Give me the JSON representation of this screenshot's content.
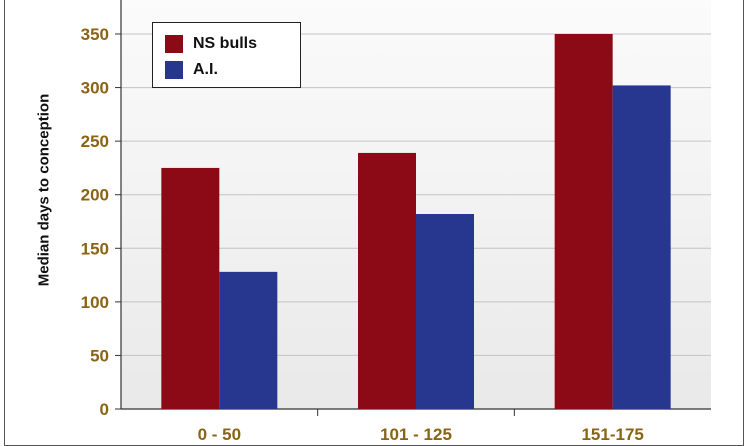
{
  "chart_data": {
    "type": "bar",
    "categories": [
      "0 - 50",
      "101 - 125",
      "151-175"
    ],
    "series": [
      {
        "name": "NS bulls",
        "values": [
          225,
          239,
          350
        ],
        "color": "#8b0a16"
      },
      {
        "name": "A.I.",
        "values": [
          128,
          182,
          302
        ],
        "color": "#27378f"
      }
    ],
    "ylabel": "Median days to conception",
    "xlabel": "",
    "ylim": [
      0,
      370
    ],
    "yticks": [
      0,
      50,
      100,
      150,
      200,
      250,
      300,
      350
    ],
    "grid": true,
    "legend_position": "top-left",
    "tick_label_color": "#8a6414"
  }
}
